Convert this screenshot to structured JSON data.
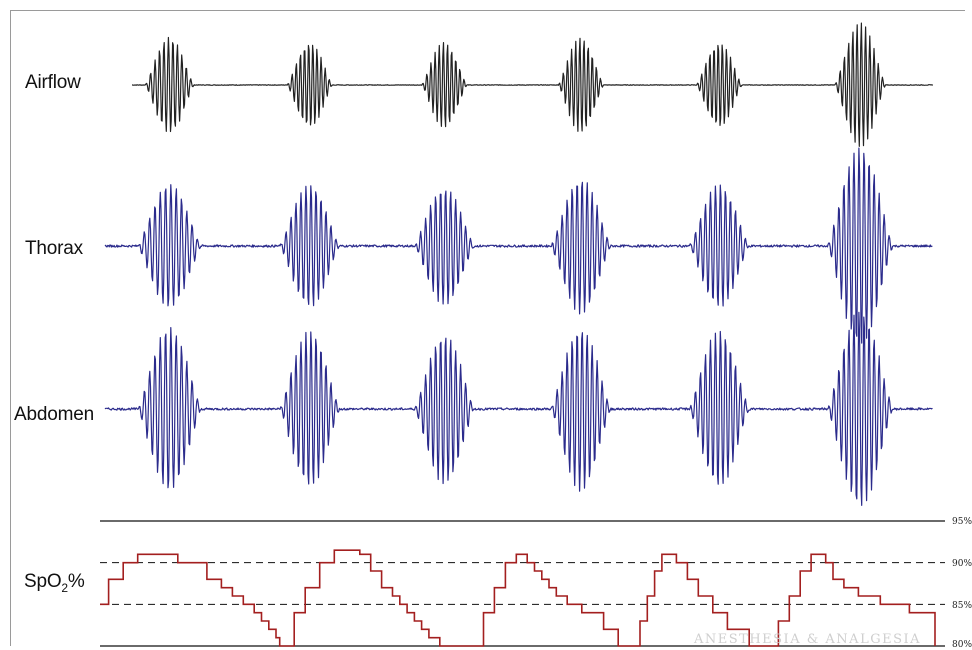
{
  "chart_data": {
    "type": "line",
    "title": "",
    "channels": [
      {
        "name": "Airflow",
        "color": "#222222",
        "baseline": 0,
        "events": [
          {
            "start": 0.0,
            "end": 1.35,
            "peak": 1.0,
            "cycles": 11
          },
          {
            "start": 3.9,
            "end": 5.15,
            "peak": 0.9,
            "cycles": 11
          },
          {
            "start": 7.6,
            "end": 8.85,
            "peak": 0.9,
            "cycles": 11
          },
          {
            "start": 11.35,
            "end": 12.6,
            "peak": 1.0,
            "cycles": 11
          },
          {
            "start": 15.15,
            "end": 16.4,
            "peak": 0.9,
            "cycles": 11
          },
          {
            "start": 18.95,
            "end": 20.35,
            "peak": 1.3,
            "cycles": 12
          }
        ]
      },
      {
        "name": "Thorax",
        "color": "#2b2b8c",
        "baseline": 0,
        "events": [
          {
            "start": -0.2,
            "end": 1.55,
            "peak": 1.0,
            "cycles": 12
          },
          {
            "start": 3.7,
            "end": 5.35,
            "peak": 1.0,
            "cycles": 12
          },
          {
            "start": 7.4,
            "end": 9.05,
            "peak": 0.95,
            "cycles": 12
          },
          {
            "start": 11.15,
            "end": 12.8,
            "peak": 1.1,
            "cycles": 12
          },
          {
            "start": 14.95,
            "end": 16.6,
            "peak": 1.0,
            "cycles": 12
          },
          {
            "start": 18.75,
            "end": 20.55,
            "peak": 1.6,
            "cycles": 13
          }
        ]
      },
      {
        "name": "Abdomen",
        "color": "#2b2b8c",
        "baseline": 0,
        "events": [
          {
            "start": -0.2,
            "end": 1.55,
            "peak": 1.2,
            "cycles": 12
          },
          {
            "start": 3.7,
            "end": 5.35,
            "peak": 1.15,
            "cycles": 12
          },
          {
            "start": 7.4,
            "end": 9.05,
            "peak": 1.1,
            "cycles": 12
          },
          {
            "start": 11.15,
            "end": 12.8,
            "peak": 1.2,
            "cycles": 12
          },
          {
            "start": 14.95,
            "end": 16.6,
            "peak": 1.15,
            "cycles": 12
          },
          {
            "start": 18.75,
            "end": 20.55,
            "peak": 1.45,
            "cycles": 13
          }
        ]
      }
    ],
    "spo2": {
      "name": "SpO2%",
      "label_main": "SpO",
      "label_sub": "2",
      "label_suffix": "%",
      "color": "#a31f1f",
      "y_ticks": [
        "95%",
        "90%",
        "85%",
        "80%"
      ],
      "y_tick_values": [
        95,
        90,
        85,
        80
      ],
      "dashed_levels": [
        90,
        85
      ],
      "solid_levels": [
        95,
        80
      ],
      "ylim": [
        80,
        95
      ],
      "x": [
        -1.7,
        -1.0,
        -0.6,
        -0.2,
        0.4,
        0.9,
        1.7,
        2.1,
        2.4,
        2.7,
        3.0,
        3.2,
        3.4,
        3.6,
        3.7,
        3.9,
        4.1,
        4.4,
        4.8,
        5.2,
        5.9,
        6.2,
        6.5,
        6.8,
        7.0,
        7.2,
        7.4,
        7.6,
        7.8,
        8.1,
        8.5,
        9.3,
        9.6,
        9.9,
        10.2,
        10.5,
        10.7,
        10.9,
        11.1,
        11.3,
        11.6,
        12.0,
        12.6,
        13.0,
        13.3,
        13.6,
        13.8,
        14.0,
        14.2,
        14.4,
        14.6,
        14.9,
        15.2,
        15.6,
        16.0,
        16.6,
        17.0,
        17.4,
        17.7,
        18.0,
        18.3,
        18.5,
        18.7,
        18.9,
        19.2,
        19.6,
        20.2,
        20.6,
        21.0,
        21.4,
        21.8,
        22.1
      ],
      "y": [
        85,
        88,
        90,
        91,
        91,
        90,
        88,
        87,
        86,
        85,
        84,
        83,
        82,
        81,
        80,
        80,
        84,
        87,
        90,
        91.5,
        91,
        89,
        87,
        86,
        85,
        84,
        83,
        82,
        81,
        80,
        80,
        84,
        87,
        90,
        91,
        90,
        89,
        88,
        87,
        86,
        85,
        84,
        82,
        80,
        80,
        83,
        86,
        89,
        91,
        91,
        90,
        88,
        86,
        84,
        82,
        80,
        80,
        83,
        86,
        89,
        91,
        91,
        90,
        88,
        87,
        86,
        85,
        85,
        84,
        84,
        81,
        80
      ]
    },
    "watermark": "ANESTHESIA & ANALGESIA"
  }
}
